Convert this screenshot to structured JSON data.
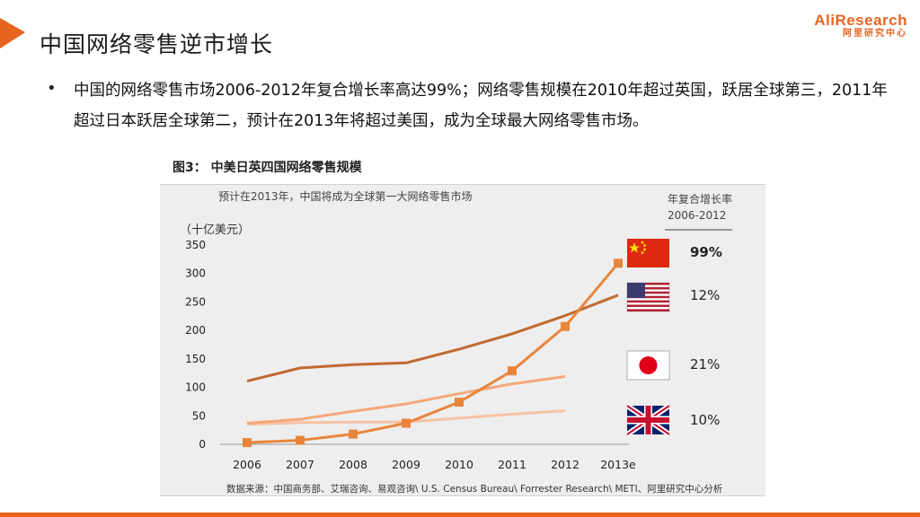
{
  "slide": {
    "title": "中国网络零售逆市增长",
    "bullet": "中国的网络零售市场2006-2012年复合增长率高达99%；网络零售规模在2010年超过英国，跃居全球第三，2011年超过日本跃居全球第二，预计在2013年将超过美国，成为全球最大网络零售市场。"
  },
  "brand": {
    "name": "AliResearch",
    "subtitle": "阿里研究中心"
  },
  "colors": {
    "accent": "#e8641e",
    "china": "#e8853a",
    "usa": "#c06a30",
    "japan": "#f4a878",
    "uk": "#f7c2a4"
  },
  "chart_data": {
    "type": "line",
    "figure_label": "图3： 中美日英四国网络零售规模",
    "subtitle": "预计在2013年，中国将成为全球第一大网络零售市场",
    "ylabel": "（十亿美元）",
    "categories": [
      "2006",
      "2007",
      "2008",
      "2009",
      "2010",
      "2011",
      "2012",
      "2013e"
    ],
    "ylim": [
      0,
      350
    ],
    "yticks": [
      0,
      50,
      100,
      150,
      200,
      250,
      300,
      350
    ],
    "legend_title": [
      "年复合增长率",
      "2006-2012"
    ],
    "source": "数据来源：中国商务部、艾瑞咨询、易观咨询\\ U.S. Census Bureau\\ Forrester Research\\ METI、阿里研究中心分析",
    "series": [
      {
        "name": "中国",
        "flag": "china-flag",
        "cagr": "99%",
        "markers": true,
        "values": [
          3,
          7,
          18,
          37,
          74,
          129,
          207,
          318
        ]
      },
      {
        "name": "美国",
        "flag": "usa-flag",
        "cagr": "12%",
        "markers": false,
        "values": [
          111,
          134,
          140,
          143,
          167,
          194,
          226,
          262
        ]
      },
      {
        "name": "日本",
        "flag": "japan-flag",
        "cagr": "21%",
        "markers": false,
        "values": [
          37,
          44,
          58,
          71,
          89,
          106,
          119,
          null
        ]
      },
      {
        "name": "英国",
        "flag": "uk-flag",
        "cagr": "10%",
        "markers": false,
        "values": [
          35,
          38,
          39,
          39,
          46,
          53,
          59,
          null
        ]
      }
    ]
  }
}
